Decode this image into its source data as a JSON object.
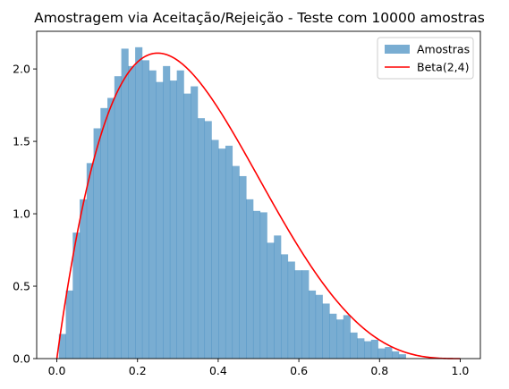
{
  "chart_data": {
    "type": "bar",
    "title": "Amostragem via Aceitação/Rejeição - Teste com 10000 amostras",
    "xlim": [
      -0.05,
      1.05
    ],
    "ylim": [
      0,
      2.26
    ],
    "x_ticks": [
      0.0,
      0.2,
      0.4,
      0.6,
      0.8,
      1.0
    ],
    "x_tick_labels": [
      "0.0",
      "0.2",
      "0.4",
      "0.6",
      "0.8",
      "1.0"
    ],
    "y_ticks": [
      0.0,
      0.5,
      1.0,
      1.5,
      2.0
    ],
    "y_tick_labels": [
      "0.0",
      "0.5",
      "1.0",
      "1.5",
      "2.0"
    ],
    "histogram": {
      "name": "Amostras",
      "color": "#1f77b4",
      "opacity": 0.6,
      "bin_edges": [
        0.005,
        0.0222,
        0.0394,
        0.0566,
        0.0738,
        0.091,
        0.1082,
        0.1254,
        0.1426,
        0.1598,
        0.177,
        0.1942,
        0.2114,
        0.2286,
        0.2458,
        0.263,
        0.2802,
        0.2974,
        0.3146,
        0.3318,
        0.349,
        0.3662,
        0.3834,
        0.4006,
        0.4178,
        0.435,
        0.4522,
        0.4694,
        0.4866,
        0.5038,
        0.521,
        0.5382,
        0.5554,
        0.5726,
        0.5898,
        0.607,
        0.6242,
        0.6414,
        0.6586,
        0.6758,
        0.693,
        0.7102,
        0.7274,
        0.7446,
        0.7618,
        0.779,
        0.7962,
        0.8134,
        0.8306,
        0.8478,
        0.865
      ],
      "densities": [
        0.17,
        0.47,
        0.87,
        1.1,
        1.35,
        1.59,
        1.73,
        1.8,
        1.95,
        2.14,
        2.02,
        2.15,
        2.06,
        1.99,
        1.91,
        2.02,
        1.92,
        1.99,
        1.83,
        1.88,
        1.66,
        1.64,
        1.51,
        1.45,
        1.47,
        1.33,
        1.26,
        1.1,
        1.02,
        1.01,
        0.8,
        0.85,
        0.72,
        0.67,
        0.61,
        0.61,
        0.47,
        0.44,
        0.38,
        0.31,
        0.27,
        0.3,
        0.18,
        0.14,
        0.12,
        0.13,
        0.07,
        0.08,
        0.05,
        0.03
      ]
    },
    "series": [
      {
        "name": "Beta(2,4)",
        "color": "#ff0000",
        "function": "20*x*(1-x)^3",
        "x_range": [
          0,
          1
        ]
      }
    ],
    "legend": {
      "placement": "top-right",
      "entries": [
        "Amostras",
        "Beta(2,4)"
      ]
    }
  }
}
